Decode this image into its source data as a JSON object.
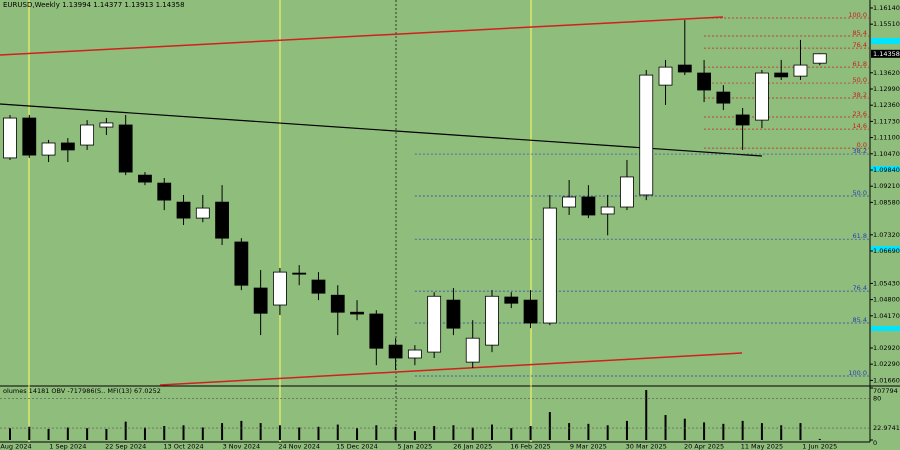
{
  "chart_data": {
    "type": "candlestick",
    "title": "EURUSD,Weekly  1.13994 1.14377 1.13913 1.14358",
    "categories": [
      "Aug 2024",
      null,
      null,
      "1 Sep 2024",
      null,
      null,
      "22 Sep 2024",
      null,
      null,
      "13 Oct 2024",
      null,
      null,
      "3 Nov 2024",
      null,
      null,
      "24 Nov 2024",
      null,
      null,
      "15 Dec 2024",
      null,
      null,
      "5 Jan 2025",
      null,
      null,
      "26 Jan 2025",
      null,
      null,
      "16 Feb 2025",
      null,
      null,
      "9 Mar 2025",
      null,
      null,
      "30 Mar 2025",
      null,
      null,
      "20 Apr 2025",
      null,
      null,
      "11 May 2025",
      null,
      null,
      "1 Jun 2025"
    ],
    "open": [
      1.1031,
      1.1186,
      1.1042,
      1.1089,
      1.1081,
      1.1151,
      1.1159,
      1.0964,
      1.0933,
      1.0859,
      1.0797,
      1.0859,
      1.0704,
      1.0525,
      1.0459,
      1.0583,
      1.0556,
      1.0497,
      1.0431,
      1.0424,
      1.0303,
      1.0253,
      1.0276,
      1.0478,
      1.0237,
      1.0303,
      1.049,
      1.0478,
      1.0389,
      1.084,
      1.0879,
      1.0813,
      1.084,
      1.0887,
      1.1314,
      1.1392,
      1.1361,
      1.1287,
      1.1198,
      1.1178,
      1.1361,
      1.1349,
      1.13994
    ],
    "high": [
      1.1198,
      1.1198,
      1.1101,
      1.1108,
      1.1178,
      1.1186,
      1.1198,
      1.0976,
      1.0953,
      1.0887,
      1.0887,
      1.0925,
      1.0719,
      1.0595,
      1.0603,
      1.0614,
      1.0587,
      1.0536,
      1.0478,
      1.0439,
      1.033,
      1.0303,
      1.0509,
      1.0525,
      1.04,
      1.0517,
      1.0509,
      1.0517,
      1.0887,
      1.0945,
      1.0925,
      1.0887,
      1.1023,
      1.1373,
      1.1412,
      1.1567,
      1.1412,
      1.1314,
      1.1225,
      1.1373,
      1.1412,
      1.149,
      1.14377
    ],
    "low": [
      1.1023,
      1.1031,
      1.1015,
      1.1015,
      1.1062,
      1.112,
      1.0964,
      1.0925,
      1.0828,
      1.077,
      1.0781,
      1.0692,
      1.0517,
      1.0342,
      1.042,
      1.0536,
      1.0478,
      1.0342,
      1.04,
      1.0225,
      1.0206,
      1.0225,
      1.0253,
      1.0342,
      1.0214,
      1.0276,
      1.0447,
      1.0369,
      1.0381,
      1.0809,
      1.0797,
      1.073,
      1.0828,
      1.0867,
      1.1237,
      1.1353,
      1.1248,
      1.1217,
      1.1062,
      1.1147,
      1.1334,
      1.1334,
      1.13913
    ],
    "close": [
      1.1186,
      1.1042,
      1.1089,
      1.1062,
      1.1159,
      1.1167,
      1.0976,
      1.0937,
      1.0867,
      1.0797,
      1.0836,
      1.0719,
      1.0536,
      1.0427,
      1.0587,
      1.0579,
      1.0505,
      1.0431,
      1.0424,
      1.0291,
      1.0253,
      1.0284,
      1.0493,
      1.0369,
      1.033,
      1.0493,
      1.0466,
      1.0389,
      1.0836,
      1.0879,
      1.0809,
      1.084,
      1.0957,
      1.1353,
      1.1384,
      1.1365,
      1.1295,
      1.1244,
      1.1159,
      1.1361,
      1.1346,
      1.1392,
      1.14358
    ],
    "up_color": "#ffffff",
    "down_color": "#000000",
    "ylim": [
      1.0148,
      1.1645
    ],
    "yticks": [
      {
        "value": 1.1614,
        "label": "1.16140"
      },
      {
        "value": 1.1551,
        "label": "1.15510"
      },
      {
        "value": 1.1362,
        "label": "1.13620"
      },
      {
        "value": 1.1299,
        "label": "1.12990"
      },
      {
        "value": 1.1236,
        "label": "1.12360"
      },
      {
        "value": 1.1173,
        "label": "1.11730"
      },
      {
        "value": 1.111,
        "label": "1.11100"
      },
      {
        "value": 1.1047,
        "label": "1.10470"
      },
      {
        "value": 1.0984,
        "label": "1.09840"
      },
      {
        "value": 1.0921,
        "label": "1.09210"
      },
      {
        "value": 1.0858,
        "label": "1.08580"
      },
      {
        "value": 1.0732,
        "label": "1.07320"
      },
      {
        "value": 1.0669,
        "label": "1.06690"
      },
      {
        "value": 1.0543,
        "label": "1.05430"
      },
      {
        "value": 1.048,
        "label": "1.04800"
      },
      {
        "value": 1.0417,
        "label": "1.04170"
      },
      {
        "value": 1.0292,
        "label": "1.02920"
      },
      {
        "value": 1.0229,
        "label": "1.02290"
      },
      {
        "value": 1.0166,
        "label": "1.01660"
      }
    ],
    "last_price_label": "1.14358",
    "fib_upper": [
      {
        "label": "100.0",
        "price": 1.1575
      },
      {
        "label": "85.4",
        "price": 1.1505
      },
      {
        "label": "76.4",
        "price": 1.1458
      },
      {
        "label": "61.8",
        "price": 1.1384
      },
      {
        "label": "50.0",
        "price": 1.1322
      },
      {
        "label": "38.2",
        "price": 1.1264
      },
      {
        "label": "23.6",
        "price": 1.119
      },
      {
        "label": "14.6",
        "price": 1.1143
      },
      {
        "label": "0.0",
        "price": 1.1069
      }
    ],
    "fib_lower": [
      {
        "label": "38.2",
        "price": 1.1046
      },
      {
        "label": "50.0",
        "price": 1.0883
      },
      {
        "label": "61.8",
        "price": 1.0715
      },
      {
        "label": "76.4",
        "price": 1.0513
      },
      {
        "label": "85.4",
        "price": 1.0389
      },
      {
        "label": "100.0",
        "price": 1.0183
      }
    ],
    "indicator_title": "olumes 14181  OBV -717986(S..  MFI(13) 67.0252",
    "volumes": [
      160000,
      180000,
      150000,
      170000,
      160000,
      150000,
      250000,
      170000,
      190000,
      200000,
      170000,
      230000,
      260000,
      230000,
      200000,
      170000,
      180000,
      210000,
      160000,
      200000,
      180000,
      120000,
      190000,
      200000,
      170000,
      210000,
      160000,
      190000,
      380000,
      230000,
      220000,
      200000,
      260000,
      680000,
      340000,
      290000,
      240000,
      220000,
      260000,
      230000,
      200000,
      230000,
      14181
    ],
    "volume_color": "#000000",
    "vlim": [
      0,
      707794
    ],
    "vticks": [
      0,
      707794
    ],
    "y2lim": [
      0,
      100
    ],
    "y2ticks": [
      80,
      22.9741
    ]
  }
}
